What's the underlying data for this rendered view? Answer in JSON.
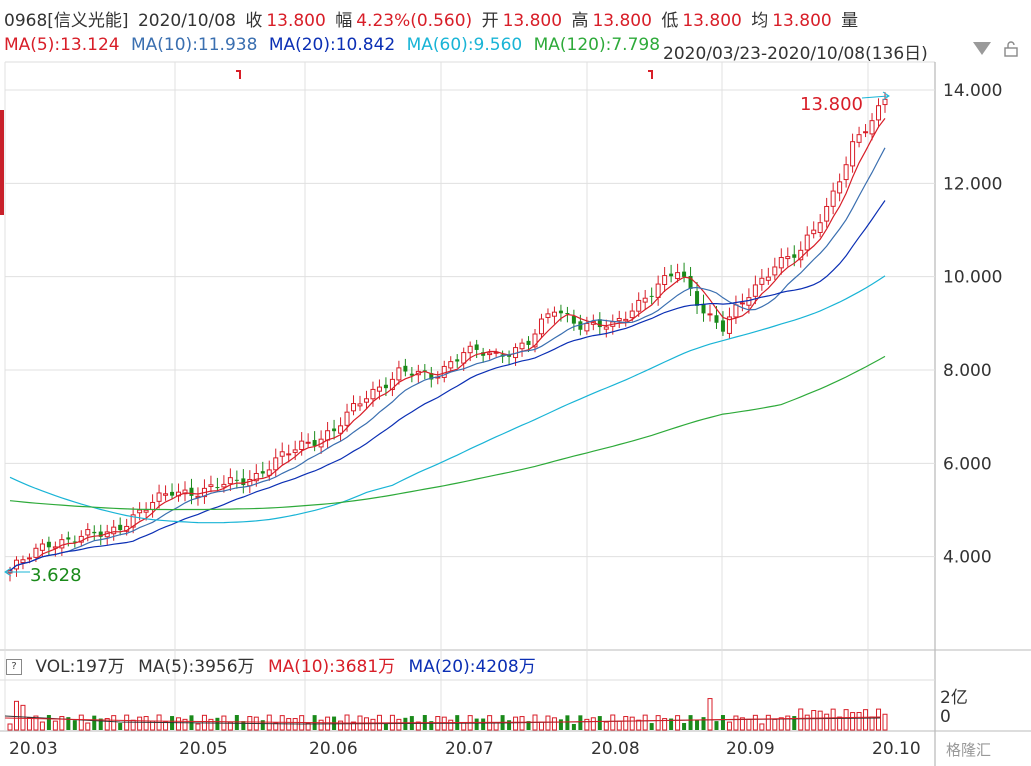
{
  "header": {
    "code": "0968[信义光能]",
    "date": "2020/10/08",
    "close": {
      "label": "收",
      "value": "13.800"
    },
    "change": {
      "label": "幅",
      "value": "4.23%(0.560)"
    },
    "open": {
      "label": "开",
      "value": "13.800"
    },
    "high": {
      "label": "高",
      "value": "13.800"
    },
    "low": {
      "label": "低",
      "value": "13.800"
    },
    "avg": {
      "label": "均",
      "value": "13.800"
    },
    "vol_label": "量"
  },
  "ma_line": {
    "ma5": "MA(5):13.124",
    "ma10": "MA(10):11.938",
    "ma20": "MA(20):10.842",
    "ma60": "MA(60):9.560",
    "ma120": "MA(120):7.798",
    "range": "2020/03/23-2020/10/08(136日)"
  },
  "volume_header": {
    "toggle": "?",
    "vol": "VOL:197万",
    "ma5": "MA(5):3956万",
    "ma10": "MA(10):3681万",
    "ma20": "MA(20):4208万"
  },
  "watermark": "格隆汇",
  "colors": {
    "up": "#d81e28",
    "down": "#1a8a1a",
    "ma5": "#d81e28",
    "ma10": "#3a6fb0",
    "ma20": "#0b2fb4",
    "ma60": "#19b4d6",
    "ma120": "#2eaa3a",
    "grid": "#e0e0e0"
  },
  "chart_data": {
    "type": "candlestick",
    "y_axis": {
      "ticks": [
        "4.000",
        "6.000",
        "8.000",
        "10.000",
        "12.000",
        "14.000"
      ],
      "range": [
        2.0,
        14.6
      ]
    },
    "volume_axis": {
      "ticks": [
        "2亿",
        "0"
      ]
    },
    "x_ticks": [
      "20.03",
      "20.05",
      "20.06",
      "20.07",
      "20.08",
      "20.09",
      "20.10"
    ],
    "annotations": {
      "high_label": "13.800",
      "low_label": "3.628"
    },
    "ma5_end": 13.124,
    "ma10_end": 11.938,
    "ma20_end": 10.842,
    "ma60_end": 9.56,
    "ma120_end": 7.798,
    "ohlc_series_approx": {
      "anchors": [
        [
          0,
          3.7
        ],
        [
          6,
          4.3
        ],
        [
          15,
          4.5
        ],
        [
          20,
          4.95
        ],
        [
          25,
          5.4
        ],
        [
          30,
          5.4
        ],
        [
          38,
          5.75
        ],
        [
          45,
          6.4
        ],
        [
          50,
          6.7
        ],
        [
          55,
          7.45
        ],
        [
          60,
          7.95
        ],
        [
          65,
          7.85
        ],
        [
          70,
          8.4
        ],
        [
          75,
          8.3
        ],
        [
          80,
          8.6
        ],
        [
          84,
          9.3
        ],
        [
          88,
          9.0
        ],
        [
          93,
          8.9
        ],
        [
          98,
          9.6
        ],
        [
          103,
          10.1
        ],
        [
          107,
          9.3
        ],
        [
          110,
          8.9
        ],
        [
          114,
          9.6
        ],
        [
          118,
          10.3
        ],
        [
          122,
          10.5
        ],
        [
          126,
          11.5
        ],
        [
          130,
          12.8
        ],
        [
          133,
          13.3
        ],
        [
          135,
          13.8
        ]
      ]
    }
  }
}
